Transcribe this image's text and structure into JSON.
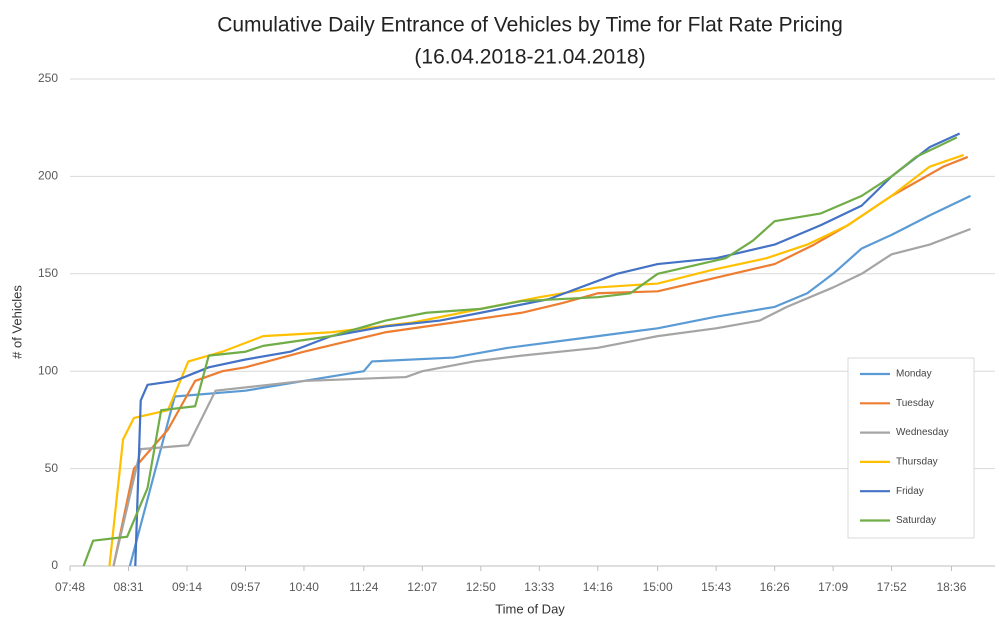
{
  "chart_data": {
    "type": "line",
    "title": "Cumulative Daily Entrance of Vehicles by Time for Flat Rate Pricing",
    "subtitle": "(16.04.2018-21.04.2018)",
    "x_label": "Time of Day",
    "y_label": "# of Vehicles",
    "xlim": [
      468,
      1148
    ],
    "ylim": [
      0,
      250
    ],
    "xticks": [
      {
        "value": 468,
        "label": "07:48"
      },
      {
        "value": 511,
        "label": "08:31"
      },
      {
        "value": 554,
        "label": "09:14"
      },
      {
        "value": 597,
        "label": "09:57"
      },
      {
        "value": 640,
        "label": "10:40"
      },
      {
        "value": 684,
        "label": "11:24"
      },
      {
        "value": 727,
        "label": "12:07"
      },
      {
        "value": 770,
        "label": "12:50"
      },
      {
        "value": 813,
        "label": "13:33"
      },
      {
        "value": 856,
        "label": "14:16"
      },
      {
        "value": 900,
        "label": "15:00"
      },
      {
        "value": 943,
        "label": "15:43"
      },
      {
        "value": 986,
        "label": "16:26"
      },
      {
        "value": 1029,
        "label": "17:09"
      },
      {
        "value": 1072,
        "label": "17:52"
      },
      {
        "value": 1116,
        "label": "18:36"
      }
    ],
    "yticks": [
      0,
      50,
      100,
      150,
      200,
      250
    ],
    "grid": true,
    "legend": "right",
    "series": [
      {
        "name": "Monday",
        "color": "#5B9BD5",
        "x": [
          512,
          545,
          597,
          640,
          684,
          690,
          750,
          790,
          856,
          900,
          943,
          986,
          1010,
          1029,
          1050,
          1072,
          1100,
          1130
        ],
        "values": [
          0,
          87,
          90,
          95,
          100,
          105,
          107,
          112,
          118,
          122,
          128,
          133,
          140,
          150,
          163,
          170,
          180,
          190
        ]
      },
      {
        "name": "Tuesday",
        "color": "#ED7D31",
        "x": [
          500,
          515,
          540,
          560,
          580,
          597,
          640,
          670,
          700,
          750,
          800,
          830,
          856,
          900,
          943,
          986,
          1015,
          1040,
          1072,
          1110,
          1128
        ],
        "values": [
          0,
          50,
          70,
          95,
          100,
          102,
          110,
          115,
          120,
          125,
          130,
          135,
          140,
          141,
          148,
          155,
          165,
          175,
          190,
          205,
          210
        ]
      },
      {
        "name": "Wednesday",
        "color": "#A5A5A5",
        "x": [
          500,
          520,
          555,
          575,
          640,
          715,
          727,
          765,
          800,
          856,
          900,
          943,
          975,
          995,
          1029,
          1050,
          1072,
          1100,
          1130
        ],
        "values": [
          0,
          60,
          62,
          90,
          95,
          97,
          100,
          105,
          108,
          112,
          118,
          122,
          126,
          133,
          143,
          150,
          160,
          165,
          173
        ]
      },
      {
        "name": "Thursday",
        "color": "#FFC000",
        "x": [
          497,
          507,
          515,
          540,
          555,
          580,
          610,
          660,
          720,
          770,
          813,
          856,
          900,
          940,
          980,
          1010,
          1040,
          1072,
          1100,
          1125
        ],
        "values": [
          0,
          65,
          76,
          80,
          105,
          110,
          118,
          120,
          125,
          132,
          138,
          143,
          145,
          152,
          158,
          165,
          175,
          190,
          205,
          211
        ]
      },
      {
        "name": "Friday",
        "color": "#4472C4",
        "x": [
          516,
          520,
          525,
          545,
          570,
          597,
          630,
          660,
          700,
          740,
          770,
          820,
          870,
          900,
          943,
          986,
          1020,
          1050,
          1072,
          1100,
          1122
        ],
        "values": [
          0,
          85,
          93,
          95,
          102,
          106,
          110,
          118,
          123,
          126,
          130,
          137,
          150,
          155,
          158,
          165,
          175,
          185,
          200,
          215,
          222
        ]
      },
      {
        "name": "Saturday",
        "color": "#70AD47",
        "x": [
          478,
          485,
          510,
          525,
          535,
          560,
          570,
          597,
          610,
          660,
          700,
          730,
          770,
          800,
          856,
          880,
          900,
          950,
          970,
          986,
          1020,
          1050,
          1072,
          1090,
          1120
        ],
        "values": [
          0,
          13,
          15,
          40,
          80,
          82,
          108,
          110,
          113,
          118,
          126,
          130,
          132,
          136,
          138,
          140,
          150,
          158,
          167,
          177,
          181,
          190,
          200,
          210,
          220
        ]
      }
    ]
  }
}
